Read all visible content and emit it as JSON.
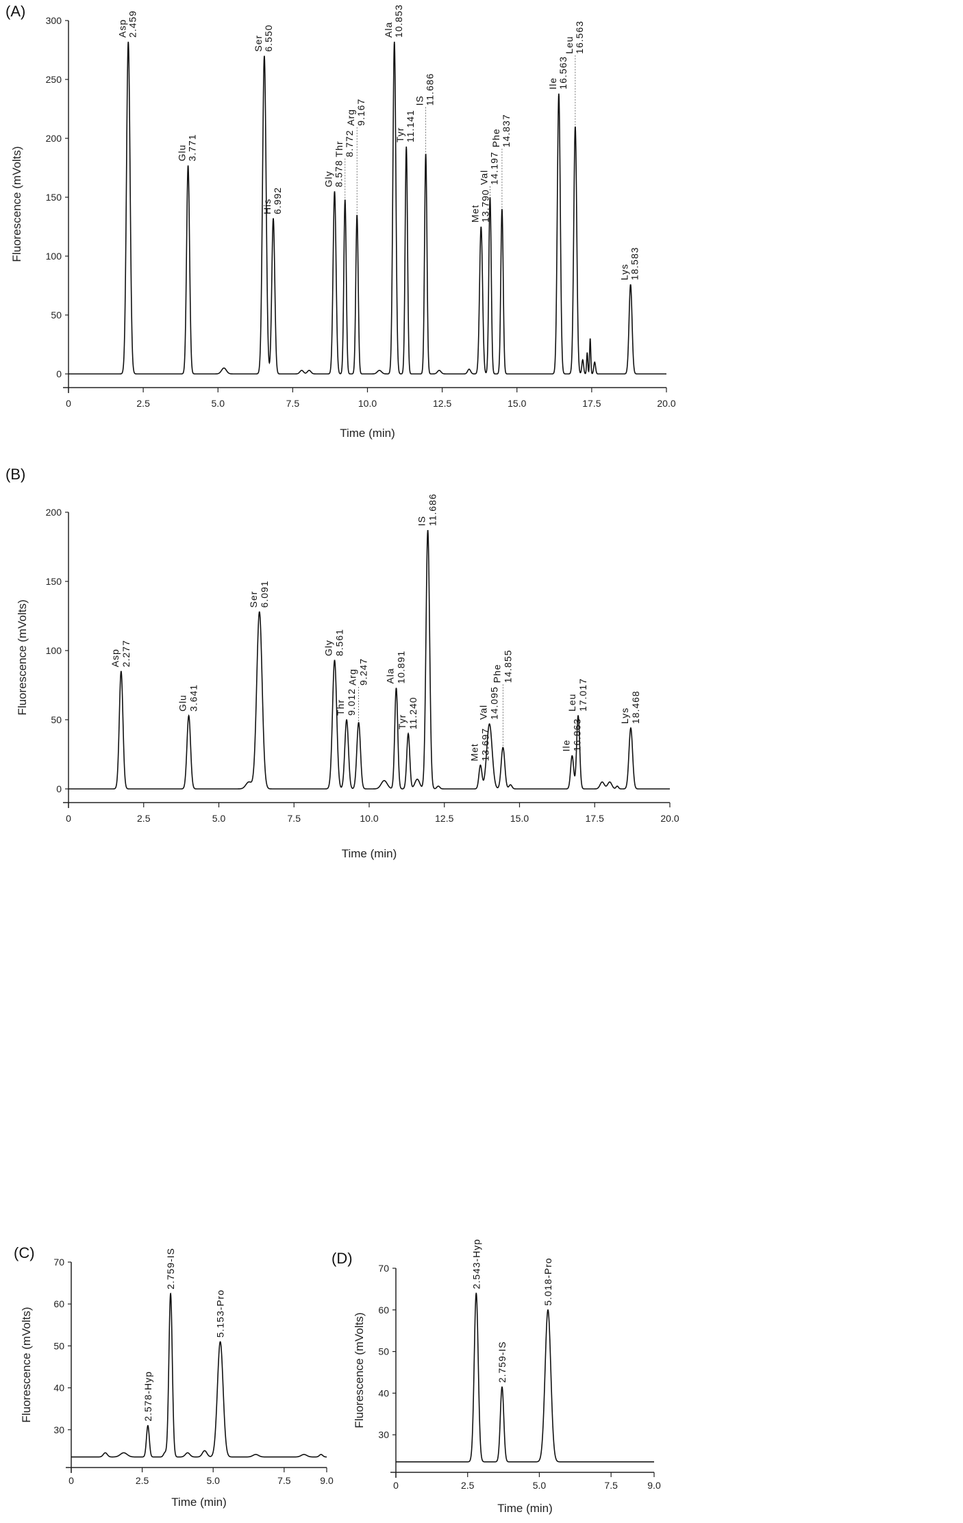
{
  "chart_data": [
    {
      "type": "line",
      "panel": "(A)",
      "xlabel": "Time (min)",
      "ylabel": "Fluorescence (mVolts)",
      "xlim": [
        0,
        20
      ],
      "ylim": [
        0,
        300
      ],
      "xticks": [
        "0",
        "2.5",
        "5.0",
        "7.5",
        "10.0",
        "12.5",
        "15.0",
        "17.5",
        "20.0"
      ],
      "yticks": [
        "0",
        "50",
        "100",
        "150",
        "200",
        "250",
        "300"
      ],
      "baseline": 0,
      "peaks": [
        {
          "name": "Asp",
          "rt": "2.459",
          "x": 2.0,
          "y": 282,
          "w": 0.06
        },
        {
          "name": "Glu",
          "rt": "3.771",
          "x": 4.0,
          "y": 177,
          "w": 0.05
        },
        {
          "name": "Ser",
          "rt": "6.550",
          "x": 6.55,
          "y": 270,
          "w": 0.06
        },
        {
          "name": "His",
          "rt": "6.992",
          "x": 6.85,
          "y": 132,
          "w": 0.05
        },
        {
          "name": "Gly",
          "rt": "8.578",
          "x": 8.9,
          "y": 155,
          "w": 0.05
        },
        {
          "name": "Thr",
          "rt": "8.772",
          "x": 9.25,
          "y": 148,
          "w": 0.04
        },
        {
          "name": "Arg",
          "rt": "9.167",
          "x": 9.65,
          "y": 135,
          "w": 0.04
        },
        {
          "name": "Ala",
          "rt": "10.853",
          "x": 10.9,
          "y": 282,
          "w": 0.05
        },
        {
          "name": "Tyr",
          "rt": "11.141",
          "x": 11.3,
          "y": 193,
          "w": 0.04
        },
        {
          "name": "IS",
          "rt": "11.686",
          "x": 11.95,
          "y": 187,
          "w": 0.04
        },
        {
          "name": "Met",
          "rt": "13.790",
          "x": 13.8,
          "y": 125,
          "w": 0.05
        },
        {
          "name": "Val",
          "rt": "14.197",
          "x": 14.1,
          "y": 150,
          "w": 0.04
        },
        {
          "name": "Phe",
          "rt": "14.837",
          "x": 14.5,
          "y": 140,
          "w": 0.04
        },
        {
          "name": "Ile",
          "rt": "16.563",
          "x": 16.4,
          "y": 238,
          "w": 0.05
        },
        {
          "name": "Leu",
          "rt": "16.563",
          "x": 16.95,
          "y": 210,
          "w": 0.05
        },
        {
          "name": "Lys",
          "rt": "18.583",
          "x": 18.8,
          "y": 76,
          "w": 0.05
        }
      ],
      "minor_peaks": [
        [
          5.2,
          5,
          0.08
        ],
        [
          7.8,
          3,
          0.06
        ],
        [
          8.05,
          3,
          0.06
        ],
        [
          10.4,
          3,
          0.07
        ],
        [
          12.4,
          3,
          0.06
        ],
        [
          13.4,
          4,
          0.05
        ],
        [
          17.2,
          12,
          0.03
        ],
        [
          17.35,
          18,
          0.02
        ],
        [
          17.45,
          30,
          0.02
        ],
        [
          17.6,
          10,
          0.03
        ]
      ]
    },
    {
      "type": "line",
      "panel": "(B)",
      "xlabel": "Time (min)",
      "ylabel": "Fluorescence (mVolts)",
      "xlim": [
        0,
        20
      ],
      "ylim": [
        0,
        200
      ],
      "xticks": [
        "0",
        "2.5",
        "5.0",
        "7.5",
        "10.0",
        "12.5",
        "15.0",
        "17.5",
        "20.0"
      ],
      "yticks": [
        "0",
        "50",
        "100",
        "150",
        "200"
      ],
      "baseline": 0,
      "peaks": [
        {
          "name": "Asp",
          "rt": "2.277",
          "x": 1.75,
          "y": 85,
          "w": 0.06
        },
        {
          "name": "Glu",
          "rt": "3.641",
          "x": 4.0,
          "y": 53,
          "w": 0.06
        },
        {
          "name": "Ser",
          "rt": "6.091",
          "x": 6.35,
          "y": 128,
          "w": 0.09
        },
        {
          "name": "Gly",
          "rt": "8.561",
          "x": 8.85,
          "y": 93,
          "w": 0.07
        },
        {
          "name": "Thr",
          "rt": "9.012",
          "x": 9.25,
          "y": 50,
          "w": 0.06
        },
        {
          "name": "Arg",
          "rt": "9.247",
          "x": 9.65,
          "y": 48,
          "w": 0.06
        },
        {
          "name": "Ala",
          "rt": "10.891",
          "x": 10.9,
          "y": 73,
          "w": 0.05
        },
        {
          "name": "Tyr",
          "rt": "11.240",
          "x": 11.3,
          "y": 40,
          "w": 0.05
        },
        {
          "name": "IS",
          "rt": "11.686",
          "x": 11.95,
          "y": 187,
          "w": 0.06
        },
        {
          "name": "Met",
          "rt": "13.697",
          "x": 13.7,
          "y": 17,
          "w": 0.05
        },
        {
          "name": "Val",
          "rt": "14.095",
          "x": 14.0,
          "y": 47,
          "w": 0.09
        },
        {
          "name": "Phe",
          "rt": "14.855",
          "x": 14.45,
          "y": 30,
          "w": 0.06
        },
        {
          "name": "Ile",
          "rt": "16.863",
          "x": 16.75,
          "y": 24,
          "w": 0.05
        },
        {
          "name": "Leu",
          "rt": "17.017",
          "x": 16.95,
          "y": 53,
          "w": 0.05
        },
        {
          "name": "Lys",
          "rt": "18.468",
          "x": 18.7,
          "y": 44,
          "w": 0.06
        }
      ],
      "minor_peaks": [
        [
          6.0,
          5,
          0.1
        ],
        [
          10.5,
          6,
          0.1
        ],
        [
          11.6,
          7,
          0.08
        ],
        [
          12.3,
          2,
          0.05
        ],
        [
          14.7,
          3,
          0.05
        ],
        [
          17.75,
          5,
          0.07
        ],
        [
          18.0,
          5,
          0.07
        ],
        [
          18.25,
          2,
          0.04
        ]
      ]
    },
    {
      "type": "line",
      "panel": "(C)",
      "xlabel": "Time (min)",
      "ylabel": "Fluorescence (mVolts)",
      "xlim": [
        0,
        9.0
      ],
      "ylim": [
        20,
        70
      ],
      "xticks": [
        "0",
        "2.5",
        "5.0",
        "7.5",
        "9.0"
      ],
      "yticks": [
        "30",
        "40",
        "50",
        "60",
        "70"
      ],
      "baseline": 23.5,
      "peaks": [
        {
          "label": "2.578-Hyp",
          "x": 2.7,
          "y": 31,
          "w": 0.05
        },
        {
          "label": "2.759-IS",
          "x": 3.5,
          "y": 62.5,
          "w": 0.06
        },
        {
          "label": "5.153-Pro",
          "x": 5.25,
          "y": 51,
          "w": 0.1
        }
      ],
      "minor_peaks": [
        [
          1.2,
          1,
          0.07
        ],
        [
          1.85,
          1,
          0.12
        ],
        [
          3.3,
          1,
          0.05
        ],
        [
          4.1,
          1,
          0.08
        ],
        [
          4.7,
          1.5,
          0.08
        ],
        [
          6.5,
          0.6,
          0.1
        ],
        [
          8.2,
          0.6,
          0.1
        ],
        [
          8.8,
          0.6,
          0.06
        ]
      ]
    },
    {
      "type": "line",
      "panel": "(D)",
      "xlabel": "Time (min)",
      "ylabel": "Fluorescence (mVolts)",
      "xlim": [
        0,
        9.0
      ],
      "ylim": [
        20,
        70
      ],
      "xticks": [
        "0",
        "2.5",
        "5.0",
        "7.5",
        "9.0"
      ],
      "yticks": [
        "30",
        "40",
        "50",
        "60",
        "70"
      ],
      "baseline": 23.5,
      "peaks": [
        {
          "label": "2.543-Hyp",
          "x": 2.8,
          "y": 64,
          "w": 0.07
        },
        {
          "label": "2.759-IS",
          "x": 3.7,
          "y": 41.5,
          "w": 0.06
        },
        {
          "label": "5.018-Pro",
          "x": 5.3,
          "y": 60,
          "w": 0.1
        }
      ],
      "minor_peaks": []
    }
  ]
}
